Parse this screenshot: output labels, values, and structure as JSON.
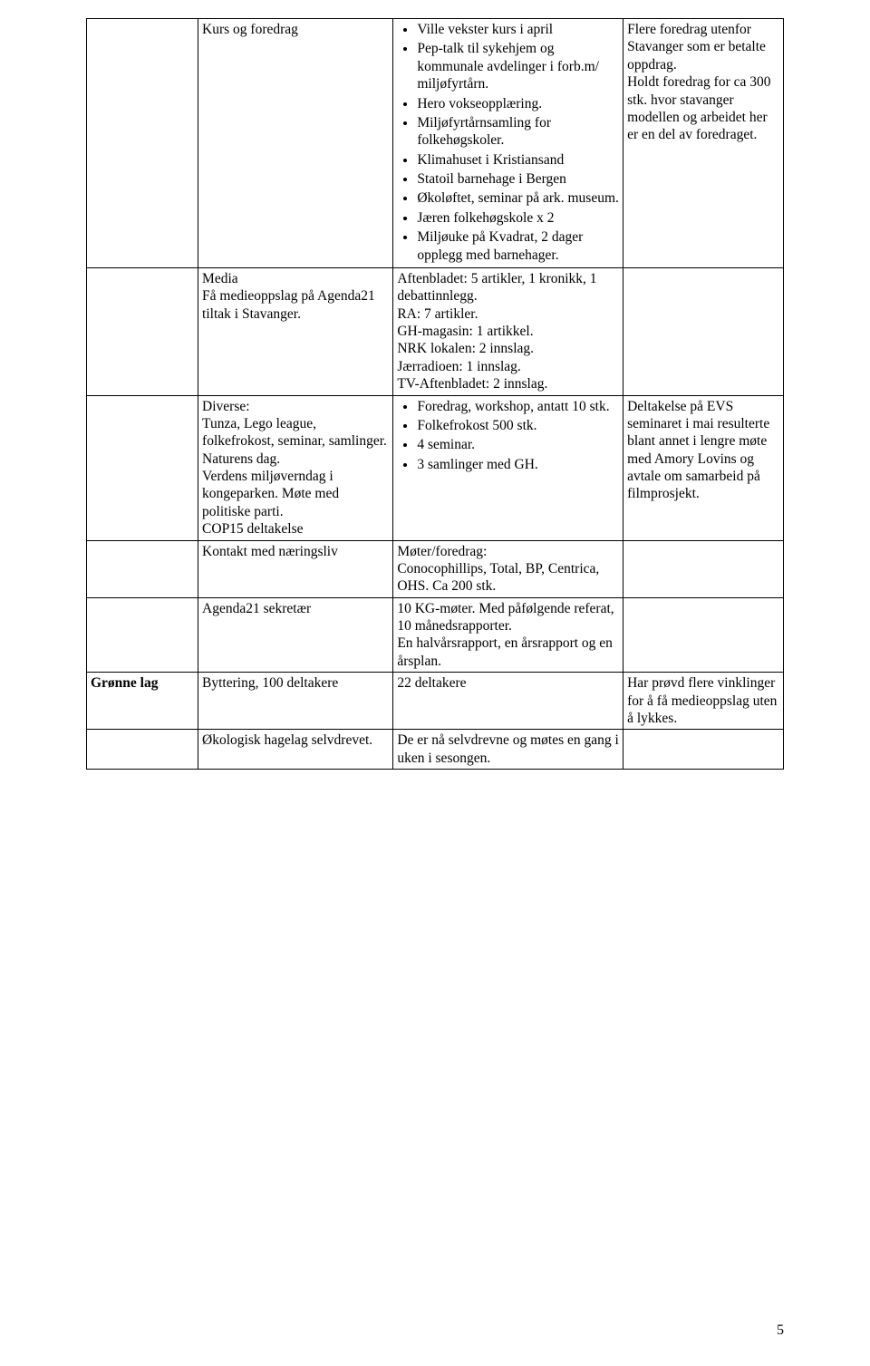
{
  "rows": [
    {
      "c1": "",
      "c2": "Kurs og foredrag",
      "c3_bullets": [
        "Ville vekster kurs i april",
        "Pep-talk til sykehjem og kommunale avdelinger i forb.m/ miljøfyrtårn.",
        "Hero vokseopplæring.",
        "Miljøfyrtårnsamling for folkehøgskoler.",
        "Klimahuset i Kristiansand",
        "Statoil barnehage i Bergen",
        "Økoløftet, seminar på ark. museum.",
        "Jæren folkehøgskole x 2",
        "Miljøuke på Kvadrat, 2 dager opplegg med barnehager."
      ],
      "c4": "Flere foredrag utenfor Stavanger som er betalte oppdrag.\nHoldt foredrag for ca 300 stk. hvor stavanger modellen og arbeidet her er en del av foredraget."
    },
    {
      "c1": "",
      "c2": "Media\nFå medieoppslag på Agenda21 tiltak i Stavanger.",
      "c3": "Aftenbladet: 5 artikler, 1 kronikk, 1 debattinnlegg.\nRA: 7 artikler.\nGH-magasin: 1 artikkel.\nNRK lokalen: 2 innslag.\nJærradioen: 1 innslag.\nTV-Aftenbladet: 2 innslag.",
      "c4": ""
    },
    {
      "c1": "",
      "c2": "Diverse:\nTunza, Lego league, folkefrokost, seminar, samlinger.\nNaturens dag.\nVerdens miljøverndag i kongeparken. Møte med politiske parti.\nCOP15 deltakelse",
      "c3_bullets": [
        "Foredrag, workshop, antatt 10 stk.",
        "Folkefrokost 500 stk.",
        "4 seminar.",
        "3 samlinger med GH."
      ],
      "c4": "Deltakelse på EVS seminaret i mai resulterte blant annet i lengre møte med Amory Lovins og avtale om samarbeid på filmprosjekt."
    },
    {
      "c1": "",
      "c2": "Kontakt med næringsliv",
      "c3": "Møter/foredrag:\nConocophillips, Total, BP, Centrica, OHS. Ca 200 stk.",
      "c4": ""
    },
    {
      "c1": "",
      "c2": "Agenda21 sekretær",
      "c3": "10 KG-møter. Med påfølgende referat, 10 månedsrapporter.\nEn halvårsrapport, en årsrapport og en årsplan.",
      "c4": ""
    },
    {
      "c1": "Grønne lag",
      "c2": "Byttering, 100 deltakere",
      "c3": "22 deltakere",
      "c4": "Har prøvd flere vinklinger for å få medieoppslag uten å lykkes."
    },
    {
      "c1": "",
      "c2": "Økologisk hagelag selvdrevet.",
      "c3": "De er nå selvdrevne og møtes en gang i uken i sesongen.",
      "c4": ""
    }
  ],
  "page_number": "5"
}
